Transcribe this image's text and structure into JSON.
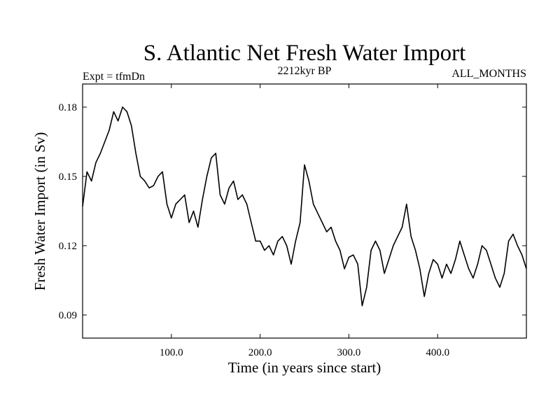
{
  "chart_data": {
    "type": "line",
    "title": "S. Atlantic Net Fresh Water Import",
    "subtitle_left": "Expt = tfmDn",
    "subtitle_center": "2212kyr BP",
    "subtitle_right": "ALL_MONTHS",
    "xlabel": "Time (in years since start)",
    "ylabel": "Fresh Water Import (in Sv)",
    "xlim": [
      0,
      500
    ],
    "ylim": [
      0.08,
      0.19
    ],
    "x_ticks": [
      100,
      200,
      300,
      400
    ],
    "x_tick_labels": [
      "100.0",
      "200.0",
      "300.0",
      "400.0"
    ],
    "y_ticks": [
      0.09,
      0.12,
      0.15,
      0.18
    ],
    "y_tick_labels": [
      "0.09",
      "0.12",
      "0.15",
      "0.18"
    ],
    "grid": false,
    "series": [
      {
        "name": "S. Atlantic net fresh water import",
        "x": [
          0,
          5,
          10,
          15,
          20,
          25,
          30,
          35,
          40,
          45,
          50,
          55,
          60,
          65,
          70,
          75,
          80,
          85,
          90,
          95,
          100,
          105,
          110,
          115,
          120,
          125,
          130,
          135,
          140,
          145,
          150,
          155,
          160,
          165,
          170,
          175,
          180,
          185,
          190,
          195,
          200,
          205,
          210,
          215,
          220,
          225,
          230,
          235,
          240,
          245,
          250,
          255,
          260,
          265,
          270,
          275,
          280,
          285,
          290,
          295,
          300,
          305,
          310,
          315,
          320,
          325,
          330,
          335,
          340,
          345,
          350,
          355,
          360,
          365,
          370,
          375,
          380,
          385,
          390,
          395,
          400,
          405,
          410,
          415,
          420,
          425,
          430,
          435,
          440,
          445,
          450,
          455,
          460,
          465,
          470,
          475,
          480,
          485,
          490,
          495,
          500
        ],
        "values": [
          0.137,
          0.152,
          0.148,
          0.156,
          0.16,
          0.165,
          0.17,
          0.178,
          0.174,
          0.18,
          0.178,
          0.172,
          0.16,
          0.15,
          0.148,
          0.145,
          0.146,
          0.15,
          0.152,
          0.138,
          0.132,
          0.138,
          0.14,
          0.142,
          0.13,
          0.135,
          0.128,
          0.14,
          0.15,
          0.158,
          0.16,
          0.142,
          0.138,
          0.145,
          0.148,
          0.14,
          0.142,
          0.138,
          0.13,
          0.122,
          0.122,
          0.118,
          0.12,
          0.116,
          0.122,
          0.124,
          0.12,
          0.112,
          0.122,
          0.13,
          0.155,
          0.148,
          0.138,
          0.134,
          0.13,
          0.126,
          0.128,
          0.122,
          0.118,
          0.11,
          0.115,
          0.116,
          0.112,
          0.094,
          0.102,
          0.118,
          0.122,
          0.118,
          0.108,
          0.114,
          0.12,
          0.124,
          0.128,
          0.138,
          0.124,
          0.118,
          0.11,
          0.098,
          0.108,
          0.114,
          0.112,
          0.106,
          0.112,
          0.108,
          0.114,
          0.122,
          0.116,
          0.11,
          0.106,
          0.112,
          0.12,
          0.118,
          0.112,
          0.106,
          0.102,
          0.108,
          0.122,
          0.125,
          0.12,
          0.116,
          0.11
        ]
      }
    ]
  }
}
